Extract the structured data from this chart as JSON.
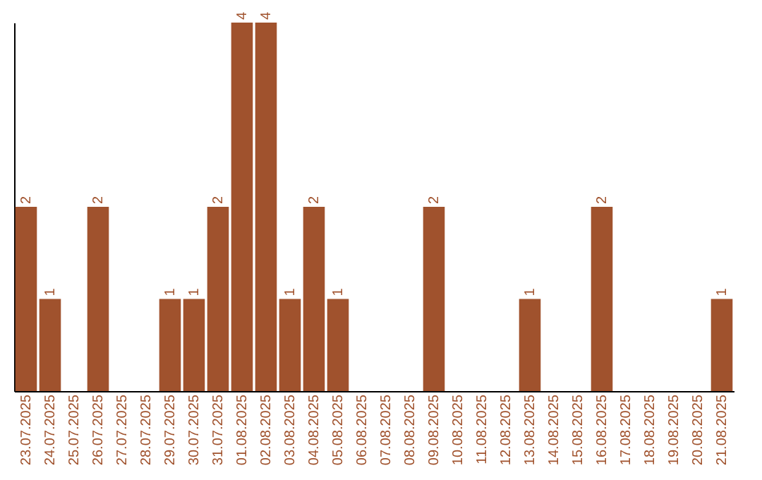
{
  "chart_data": {
    "type": "bar",
    "categories": [
      "23.07.2025",
      "24.07.2025",
      "25.07.2025",
      "26.07.2025",
      "27.07.2025",
      "28.07.2025",
      "29.07.2025",
      "30.07.2025",
      "31.07.2025",
      "01.08.2025",
      "02.08.2025",
      "03.08.2025",
      "04.08.2025",
      "05.08.2025",
      "06.08.2025",
      "07.08.2025",
      "08.08.2025",
      "09.08.2025",
      "10.08.2025",
      "11.08.2025",
      "12.08.2025",
      "13.08.2025",
      "14.08.2025",
      "15.08.2025",
      "16.08.2025",
      "17.08.2025",
      "18.08.2025",
      "19.08.2025",
      "20.08.2025",
      "21.08.2025"
    ],
    "values": [
      2,
      1,
      0,
      2,
      0,
      0,
      1,
      1,
      2,
      4,
      4,
      1,
      2,
      1,
      0,
      0,
      0,
      2,
      0,
      0,
      0,
      1,
      0,
      0,
      2,
      0,
      0,
      0,
      0,
      1
    ],
    "value_labels": [
      "2",
      "1",
      null,
      "2",
      null,
      null,
      "1",
      "1",
      "2",
      "4",
      "4",
      "1",
      "2",
      "1",
      null,
      null,
      null,
      "2",
      null,
      null,
      null,
      "1",
      null,
      null,
      "2",
      null,
      null,
      null,
      null,
      "1"
    ],
    "color": "#a0522d",
    "ylim": [
      0,
      4
    ],
    "tick_labels": "x",
    "grid": false
  }
}
